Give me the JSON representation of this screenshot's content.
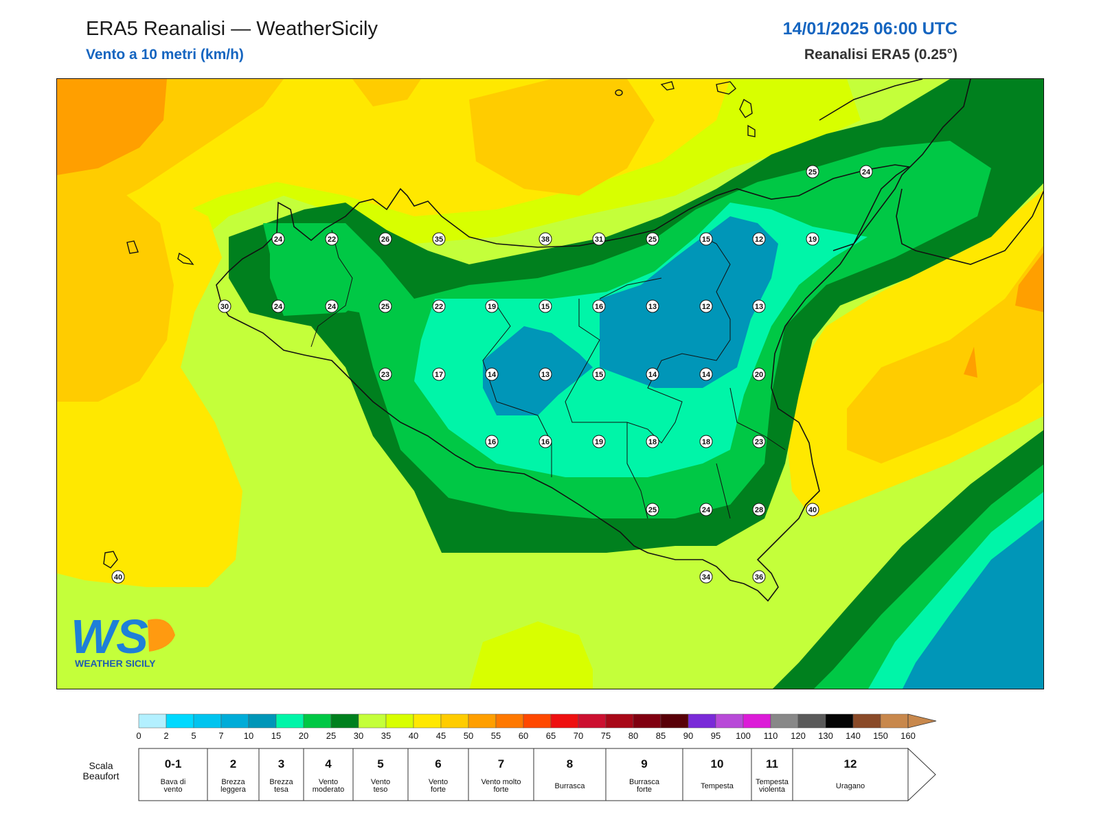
{
  "header": {
    "title": "ERA5 Reanalisi — WeatherSicily",
    "subtitle": "Vento a 10 metri (km/h)",
    "datetime": "14/01/2025 06:00 UTC",
    "source": "Reanalisi ERA5 (0.25°)"
  },
  "map": {
    "markers": [
      {
        "value": "24"
      },
      {
        "value": "22"
      },
      {
        "value": "26"
      },
      {
        "value": "35"
      },
      {
        "value": "38"
      },
      {
        "value": "31"
      },
      {
        "value": "25"
      },
      {
        "value": "15"
      },
      {
        "value": "12"
      },
      {
        "value": "19"
      },
      {
        "value": "30"
      },
      {
        "value": "24"
      },
      {
        "value": "24"
      },
      {
        "value": "25"
      },
      {
        "value": "22"
      },
      {
        "value": "19"
      },
      {
        "value": "15"
      },
      {
        "value": "16"
      },
      {
        "value": "13"
      },
      {
        "value": "12"
      },
      {
        "value": "13"
      },
      {
        "value": "23"
      },
      {
        "value": "17"
      },
      {
        "value": "14"
      },
      {
        "value": "13"
      },
      {
        "value": "15"
      },
      {
        "value": "14"
      },
      {
        "value": "14"
      },
      {
        "value": "20"
      },
      {
        "value": "16"
      },
      {
        "value": "16"
      },
      {
        "value": "19"
      },
      {
        "value": "18"
      },
      {
        "value": "18"
      },
      {
        "value": "23"
      },
      {
        "value": "25"
      },
      {
        "value": "24"
      },
      {
        "value": "28"
      },
      {
        "value": "40"
      },
      {
        "value": "34"
      },
      {
        "value": "36"
      },
      {
        "value": "40"
      },
      {
        "value": "25"
      },
      {
        "value": "24"
      }
    ],
    "logo_text": "WEATHER SICILY",
    "logo_letters": "WS"
  },
  "legend": {
    "colors": [
      "#b3f0ff",
      "#00d9ff",
      "#00c4ef",
      "#00acd8",
      "#0096b8",
      "#00f5a8",
      "#00c845",
      "#00801e",
      "#c4ff3a",
      "#d8ff00",
      "#ffe800",
      "#ffcc00",
      "#ff9f00",
      "#ff7800",
      "#ff4800",
      "#ee1010",
      "#cc1030",
      "#a80818",
      "#800010",
      "#580008",
      "#7a2ad8",
      "#b84ad8",
      "#dc1cd8",
      "#888888",
      "#5a5a5a",
      "#050505",
      "#8a4a28",
      "#c8884c"
    ],
    "ticks": [
      "0",
      "2",
      "5",
      "7",
      "10",
      "15",
      "20",
      "25",
      "30",
      "35",
      "40",
      "45",
      "50",
      "55",
      "60",
      "65",
      "70",
      "75",
      "80",
      "85",
      "90",
      "95",
      "100",
      "110",
      "120",
      "130",
      "140",
      "150",
      "160"
    ],
    "scale_label": "Scala Beaufort",
    "beaufort": [
      {
        "num": "0-1",
        "name": "Bava di vento"
      },
      {
        "num": "2",
        "name": "Brezza leggera"
      },
      {
        "num": "3",
        "name": "Brezza tesa"
      },
      {
        "num": "4",
        "name": "Vento moderato"
      },
      {
        "num": "5",
        "name": "Vento teso"
      },
      {
        "num": "6",
        "name": "Vento forte"
      },
      {
        "num": "7",
        "name": "Vento molto forte"
      },
      {
        "num": "8",
        "name": "Burrasca"
      },
      {
        "num": "9",
        "name": "Burrasca forte"
      },
      {
        "num": "10",
        "name": "Tempesta"
      },
      {
        "num": "11",
        "name": "Tempesta violenta"
      },
      {
        "num": "12",
        "name": "Uragano"
      }
    ]
  }
}
